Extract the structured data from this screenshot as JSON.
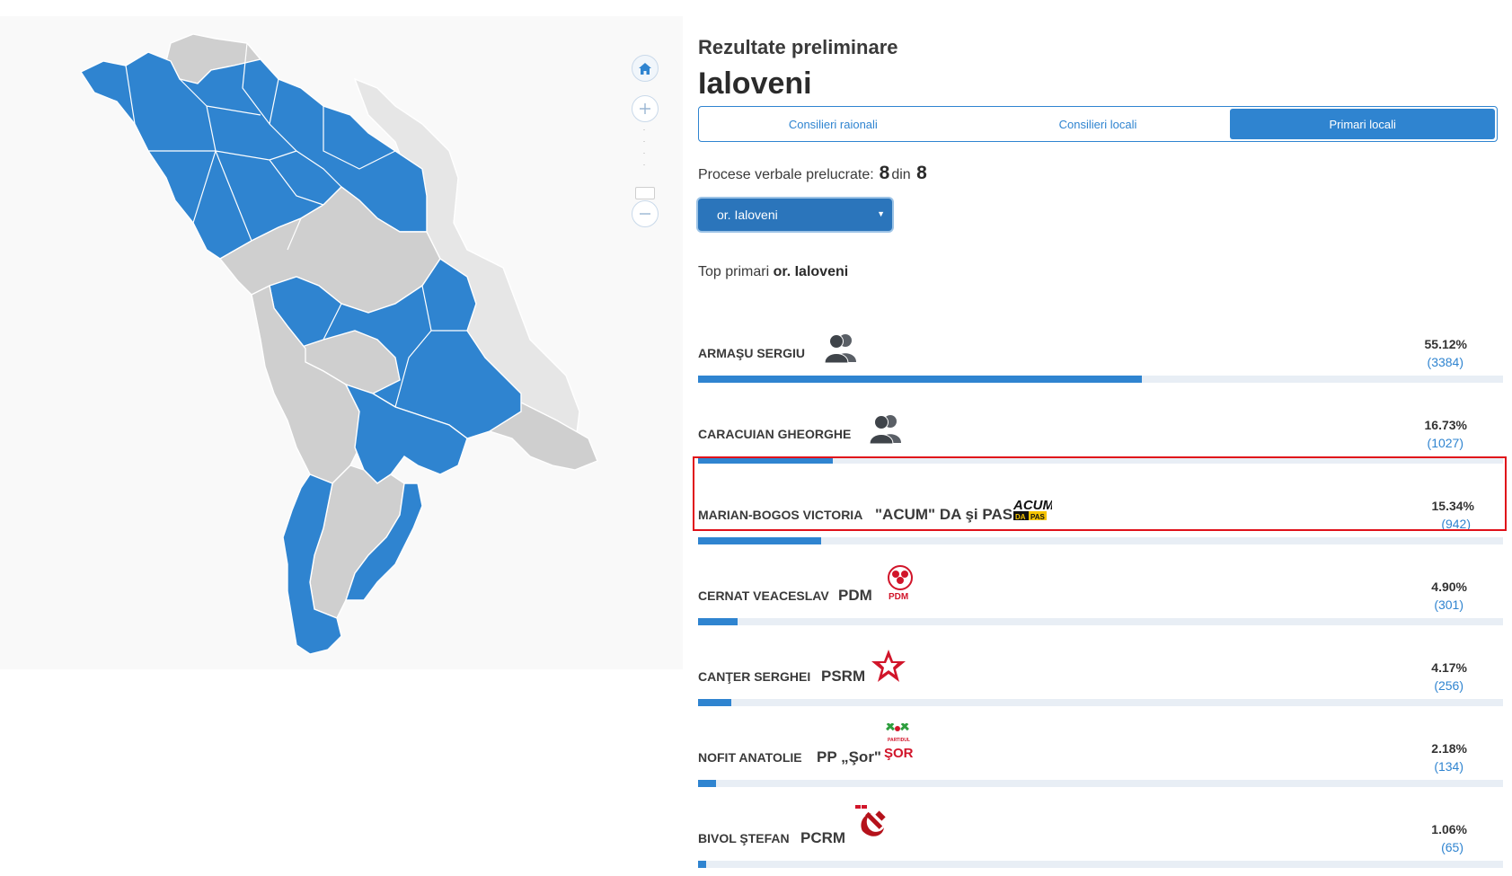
{
  "map": {
    "home_icon": "home-icon",
    "zoom_in_icon": "plus-icon",
    "zoom_out_icon": "minus-icon",
    "colors": {
      "highlighted_region": "#2f84d0",
      "other_region": "#cfcfcf",
      "outside_region": "#e6e6e6"
    }
  },
  "header": {
    "subtitle": "Rezultate preliminare",
    "title": "Ialoveni"
  },
  "tabs": [
    {
      "label": "Consilieri raionali",
      "active": false
    },
    {
      "label": "Consilieri locali",
      "active": false
    },
    {
      "label": "Primari locali",
      "active": true
    }
  ],
  "processed": {
    "label": "Procese verbale prelucrate:",
    "done": "8",
    "sep": "din",
    "total": "8"
  },
  "locality_select": {
    "value": "or. Ialoveni"
  },
  "top_line": {
    "prefix": "Top primari",
    "locality": "or. Ialoveni"
  },
  "candidates": [
    {
      "name": "ARMAŞU SERGIU",
      "party": "",
      "logo": "independent-icon",
      "pct_label": "55.12%",
      "votes": "(3384)",
      "pct": 55.12,
      "highlighted": false
    },
    {
      "name": "CARACUIAN GHEORGHE",
      "party": "",
      "logo": "independent-icon",
      "pct_label": "16.73%",
      "votes": "(1027)",
      "pct": 16.73,
      "highlighted": false
    },
    {
      "name": "MARIAN-BOGOS VICTORIA",
      "party": "\"ACUM\" DA şi PAS",
      "logo": "acum-logo",
      "logo_text": [
        "ACUM",
        "DA",
        "PAS"
      ],
      "pct_label": "15.34%",
      "votes": "(942)",
      "pct": 15.34,
      "highlighted": true
    },
    {
      "name": "CERNAT VEACESLAV",
      "party": "PDM",
      "logo": "pdm-logo",
      "logo_text": [
        "PDM"
      ],
      "pct_label": "4.90%",
      "votes": "(301)",
      "pct": 4.9,
      "highlighted": false
    },
    {
      "name": "CANŢER SERGHEI",
      "party": "PSRM",
      "logo": "psrm-star-logo",
      "pct_label": "4.17%",
      "votes": "(256)",
      "pct": 4.17,
      "highlighted": false
    },
    {
      "name": "NOFIT ANATOLIE",
      "party": "PP „Şor\"",
      "logo": "sor-logo",
      "logo_text": [
        "PARTIDUL",
        "ŞOR"
      ],
      "pct_label": "2.18%",
      "votes": "(134)",
      "pct": 2.18,
      "highlighted": false
    },
    {
      "name": "BIVOL ŞTEFAN",
      "party": "PCRM",
      "logo": "pcrm-hammer-sickle-logo",
      "pct_label": "1.06%",
      "votes": "(65)",
      "pct": 1.06,
      "highlighted": false
    }
  ],
  "colors": {
    "accent": "#2f84d0",
    "bar_track": "#e8eef5",
    "highlight_border": "#e0111a"
  }
}
